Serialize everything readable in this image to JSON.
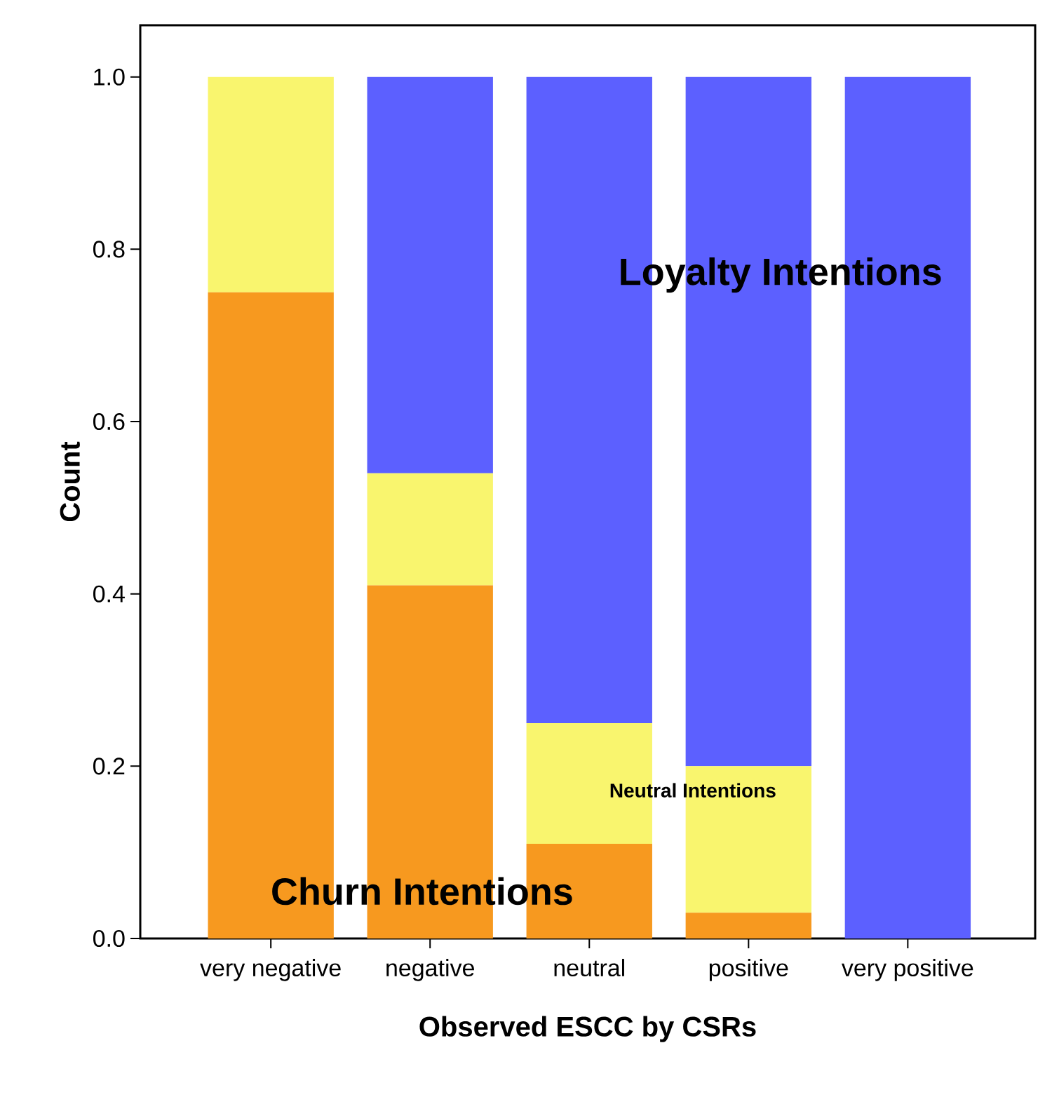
{
  "chart_data": {
    "type": "bar",
    "stacked": true,
    "xlabel": "Observed ESCC by CSRs",
    "ylabel": "Count",
    "categories": [
      "very negative",
      "negative",
      "neutral",
      "positive",
      "very positive"
    ],
    "series": [
      {
        "name": "Churn Intentions",
        "color": "#f7991f",
        "values": [
          0.75,
          0.41,
          0.11,
          0.03,
          0
        ]
      },
      {
        "name": "Neutral Intentions",
        "color": "#f9f56e",
        "values": [
          0.25,
          0.13,
          0.14,
          0.17,
          0
        ]
      },
      {
        "name": "Loyalty Intentions",
        "color": "#5c60ff",
        "values": [
          0,
          0.46,
          0.75,
          0.8,
          1.0
        ]
      }
    ],
    "ylim": [
      0,
      1.06
    ],
    "yticks": [
      {
        "value": 0,
        "label": "0.0"
      },
      {
        "value": 0.2,
        "label": "0.2"
      },
      {
        "value": 0.4,
        "label": "0.4"
      },
      {
        "value": 0.6,
        "label": "0.6"
      },
      {
        "value": 0.8,
        "label": "0.8"
      },
      {
        "value": 1.0,
        "label": "1.0"
      }
    ]
  }
}
